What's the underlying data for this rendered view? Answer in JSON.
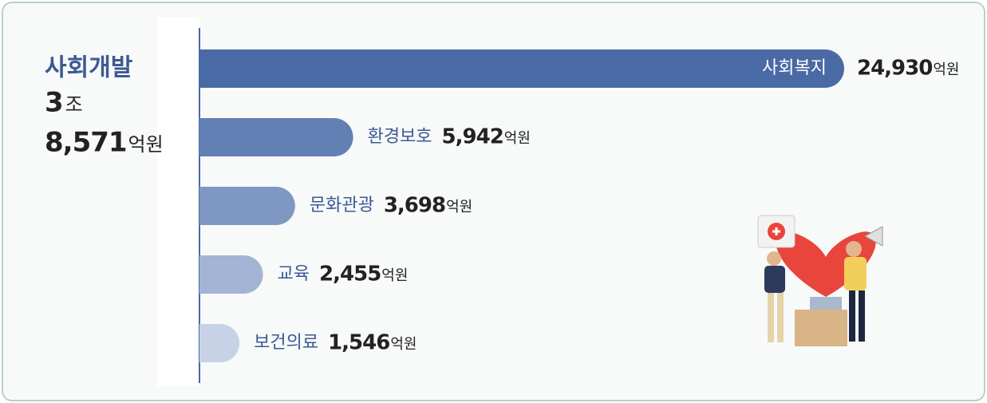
{
  "chart_data": {
    "type": "bar",
    "orientation": "horizontal",
    "summary": {
      "title": "사회개발",
      "trillion": "3",
      "trillion_unit": "조",
      "rest": "8,571"
    },
    "unit": "억원",
    "categories": [
      "사회복지",
      "환경보호",
      "문화관광",
      "교육",
      "보건의료"
    ],
    "values": [
      24930,
      5942,
      3698,
      2455,
      1546
    ],
    "value_labels": [
      "24,930",
      "5,942",
      "3,698",
      "2,455",
      "1,546"
    ],
    "colors": [
      "#4a6aa5",
      "#6380b5",
      "#7f97c3",
      "#a3b4d4",
      "#c7d2e6"
    ]
  }
}
